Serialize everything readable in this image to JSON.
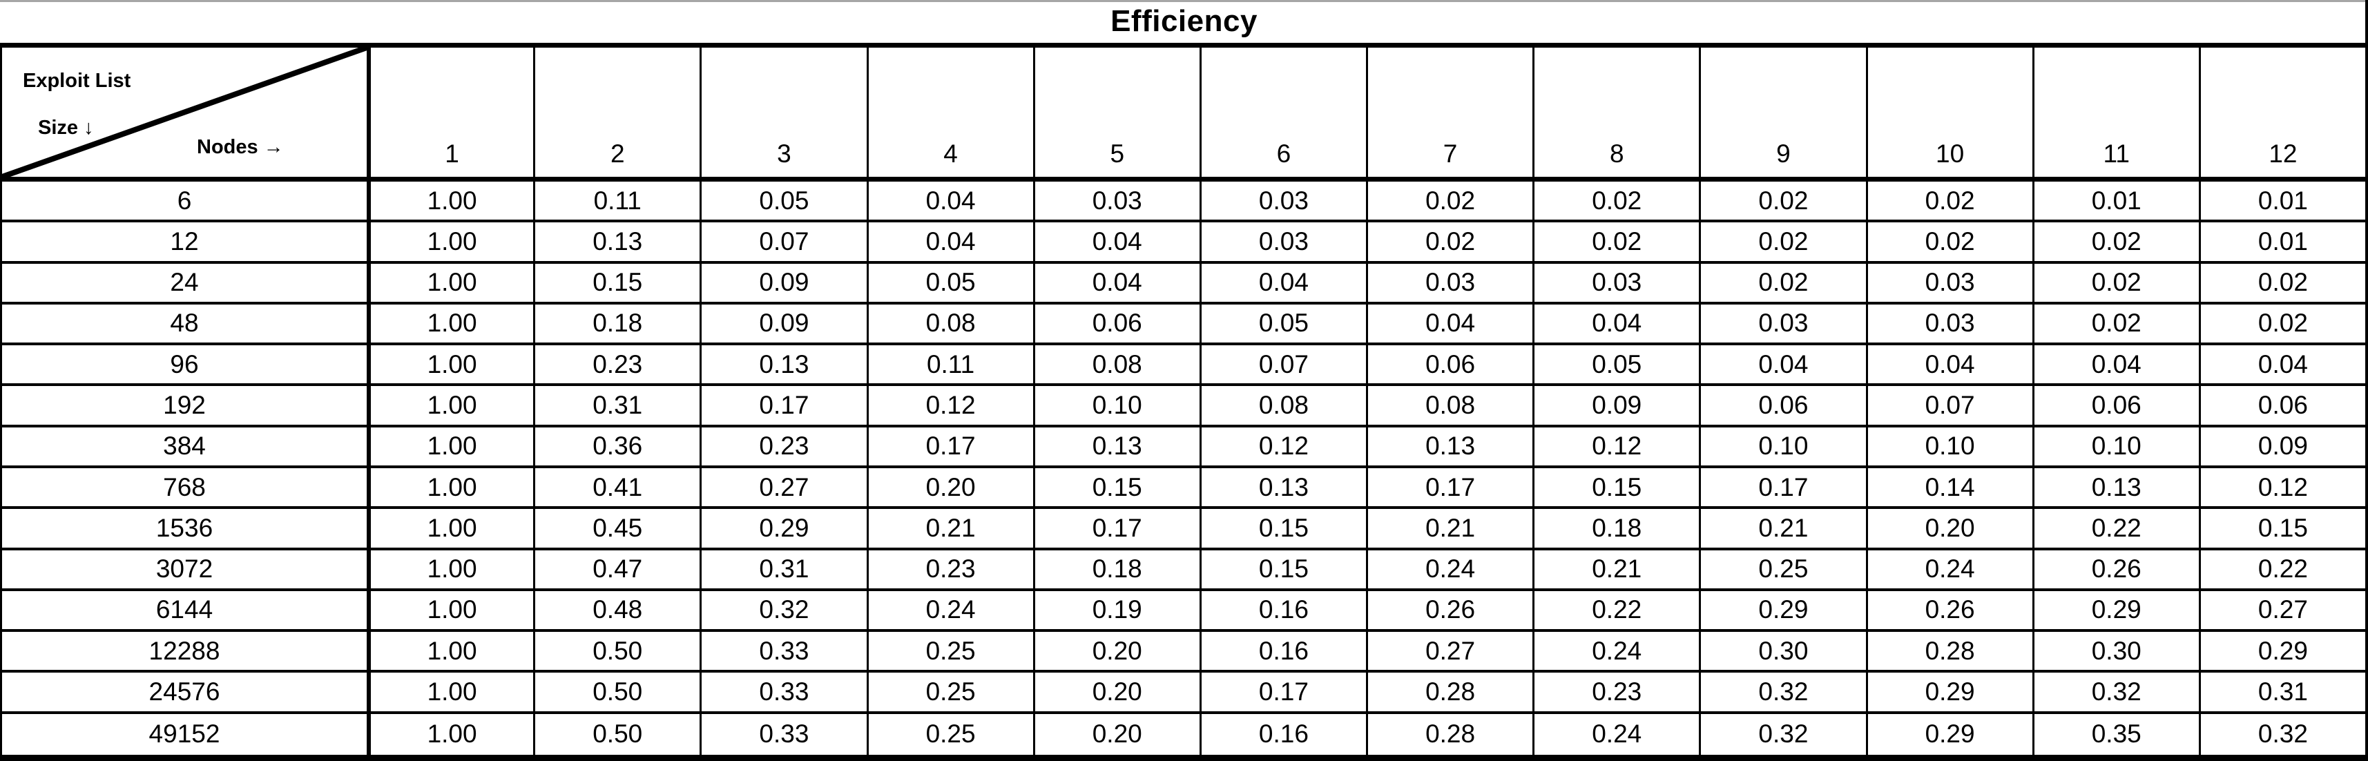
{
  "corner": {
    "exploit_list_label": "Exploit List",
    "size_label": "Size ↓",
    "nodes_label": "Nodes →"
  },
  "colors": {
    "border": "#000000",
    "background": "#ffffff",
    "text": "#000000",
    "top_edge": "#a6a6a6"
  },
  "chart_data": {
    "type": "table",
    "title": "Efficiency",
    "row_axis_label": "Exploit List Size",
    "column_axis_label": "Nodes",
    "columns": [
      1,
      2,
      3,
      4,
      5,
      6,
      7,
      8,
      9,
      10,
      11,
      12
    ],
    "row_sizes": [
      6,
      12,
      24,
      48,
      96,
      192,
      384,
      768,
      1536,
      3072,
      6144,
      12288,
      24576,
      49152
    ],
    "values": [
      [
        1.0,
        0.11,
        0.05,
        0.04,
        0.03,
        0.03,
        0.02,
        0.02,
        0.02,
        0.02,
        0.01,
        0.01
      ],
      [
        1.0,
        0.13,
        0.07,
        0.04,
        0.04,
        0.03,
        0.02,
        0.02,
        0.02,
        0.02,
        0.02,
        0.01
      ],
      [
        1.0,
        0.15,
        0.09,
        0.05,
        0.04,
        0.04,
        0.03,
        0.03,
        0.02,
        0.03,
        0.02,
        0.02
      ],
      [
        1.0,
        0.18,
        0.09,
        0.08,
        0.06,
        0.05,
        0.04,
        0.04,
        0.03,
        0.03,
        0.02,
        0.02
      ],
      [
        1.0,
        0.23,
        0.13,
        0.11,
        0.08,
        0.07,
        0.06,
        0.05,
        0.04,
        0.04,
        0.04,
        0.04
      ],
      [
        1.0,
        0.31,
        0.17,
        0.12,
        0.1,
        0.08,
        0.08,
        0.09,
        0.06,
        0.07,
        0.06,
        0.06
      ],
      [
        1.0,
        0.36,
        0.23,
        0.17,
        0.13,
        0.12,
        0.13,
        0.12,
        0.1,
        0.1,
        0.1,
        0.09
      ],
      [
        1.0,
        0.41,
        0.27,
        0.2,
        0.15,
        0.13,
        0.17,
        0.15,
        0.17,
        0.14,
        0.13,
        0.12
      ],
      [
        1.0,
        0.45,
        0.29,
        0.21,
        0.17,
        0.15,
        0.21,
        0.18,
        0.21,
        0.2,
        0.22,
        0.15
      ],
      [
        1.0,
        0.47,
        0.31,
        0.23,
        0.18,
        0.15,
        0.24,
        0.21,
        0.25,
        0.24,
        0.26,
        0.22
      ],
      [
        1.0,
        0.48,
        0.32,
        0.24,
        0.19,
        0.16,
        0.26,
        0.22,
        0.29,
        0.26,
        0.29,
        0.27
      ],
      [
        1.0,
        0.5,
        0.33,
        0.25,
        0.2,
        0.16,
        0.27,
        0.24,
        0.3,
        0.28,
        0.3,
        0.29
      ],
      [
        1.0,
        0.5,
        0.33,
        0.25,
        0.2,
        0.17,
        0.28,
        0.23,
        0.32,
        0.29,
        0.32,
        0.31
      ],
      [
        1.0,
        0.5,
        0.33,
        0.25,
        0.2,
        0.16,
        0.28,
        0.24,
        0.32,
        0.29,
        0.35,
        0.32
      ]
    ]
  }
}
